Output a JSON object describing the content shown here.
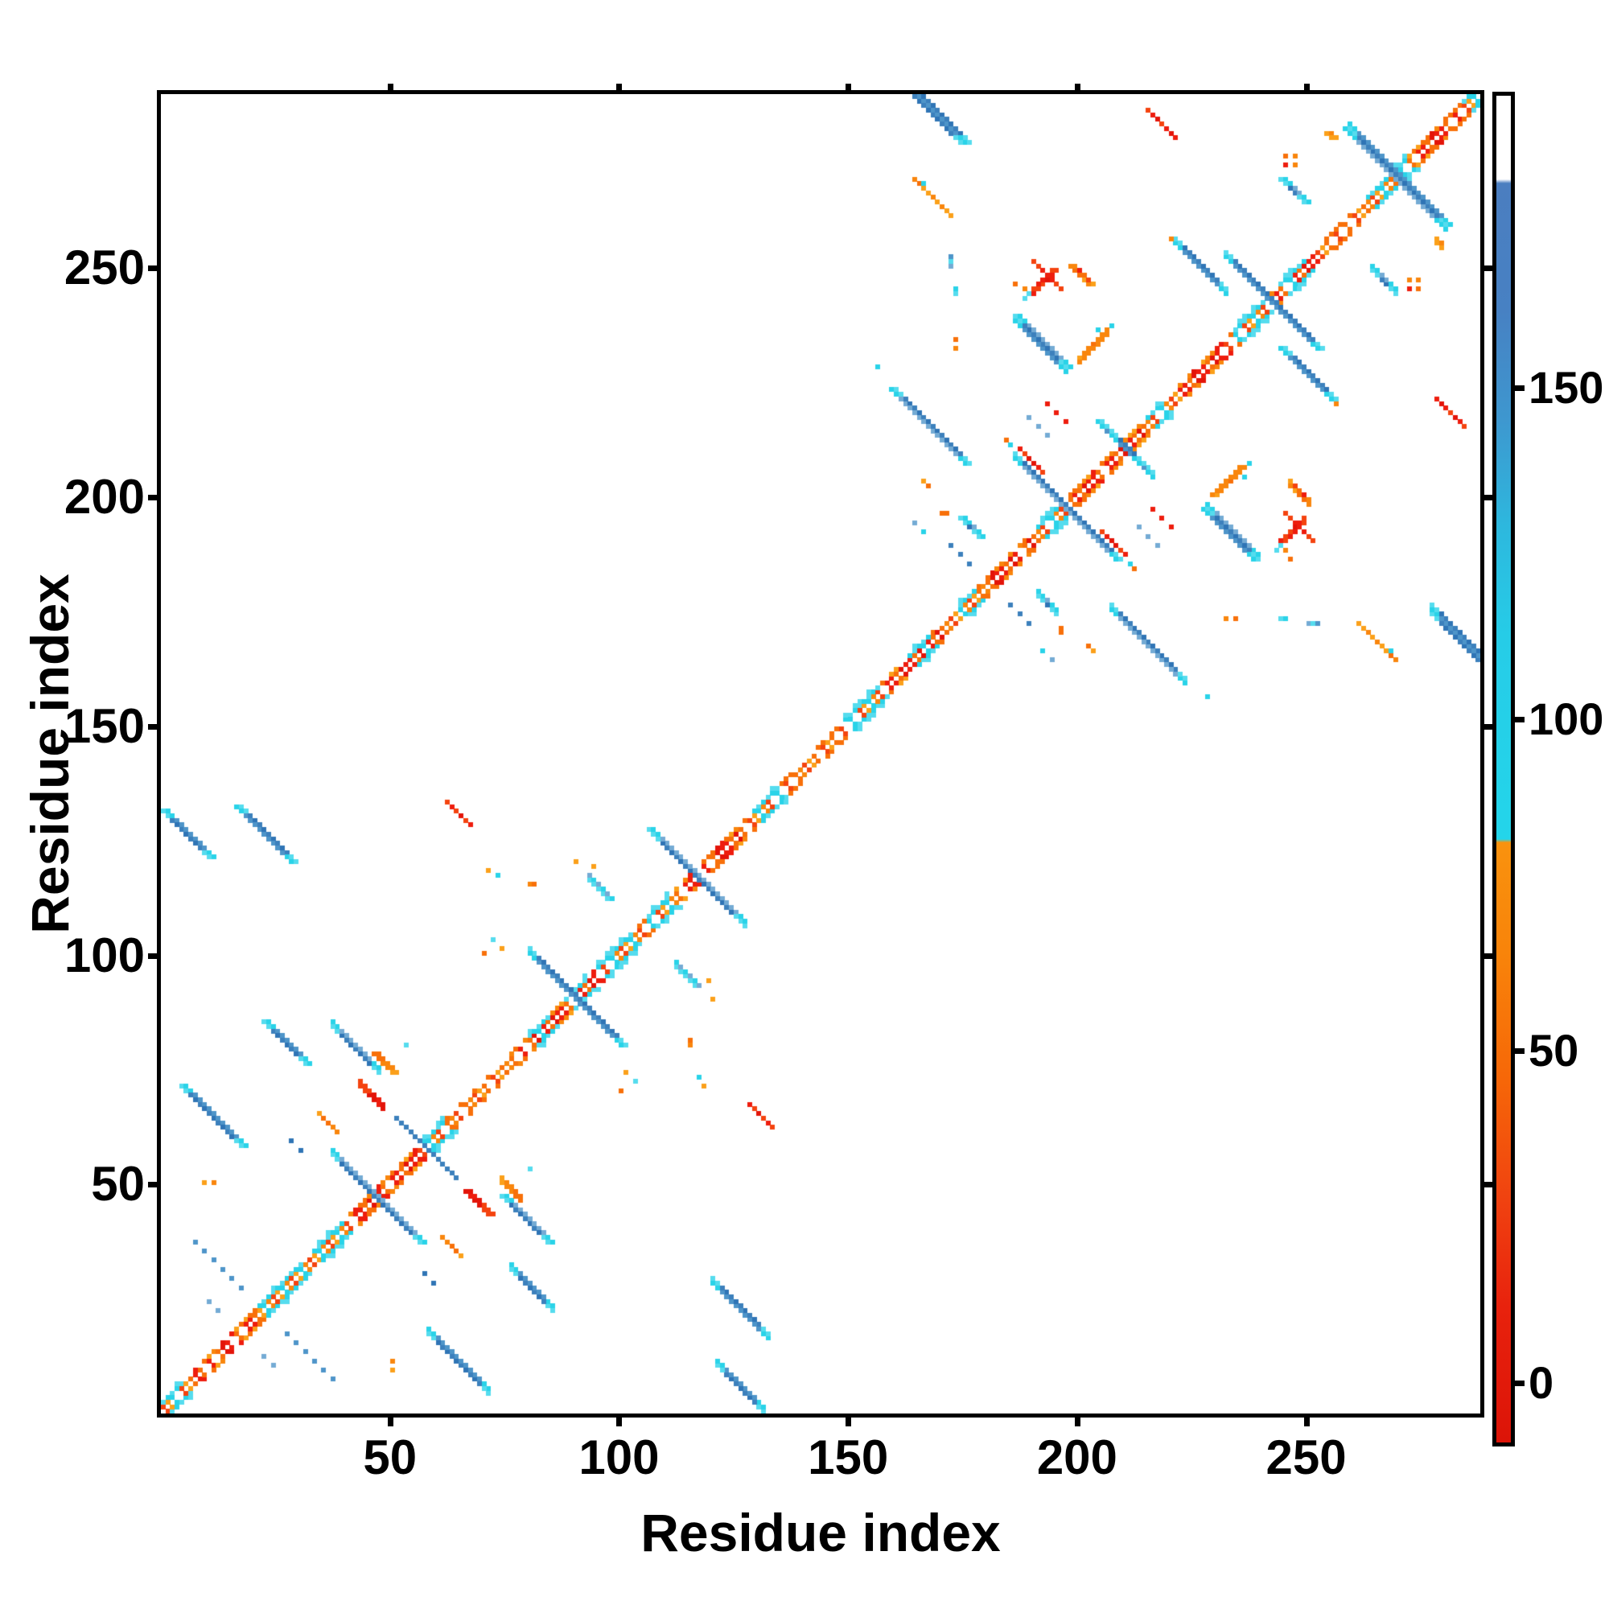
{
  "figure": {
    "xlabel": "Residue index",
    "ylabel": "Residue index"
  },
  "chart_data": {
    "type": "heatmap",
    "subtype": "protein-contact-map",
    "title": "",
    "xlabel": "Residue index",
    "ylabel": "Residue index",
    "xlim": [
      0,
      288
    ],
    "ylim": [
      0,
      288
    ],
    "x_ticks": [
      50,
      100,
      150,
      200,
      250
    ],
    "y_ticks": [
      50,
      100,
      150,
      200,
      250
    ],
    "grid": false,
    "legend": "none",
    "n_residues": 288,
    "geometry": {
      "left": 200,
      "top": 117,
      "size": 1640,
      "n": 288
    },
    "palette": {
      "background": "#ffffff",
      "axis": "#000000",
      "red": [
        "#EE1D0E",
        "#E31409",
        "#F4430F"
      ],
      "orange": [
        "#F9860D",
        "#F8700A",
        "#FBA01A"
      ],
      "cyan": [
        "#29D3E8",
        "#55DCEE"
      ],
      "blue": [
        "#4E95C9",
        "#3C80BC",
        "#74ABD4",
        "#2F74B5"
      ],
      "colorbar_blue": "#4B7EC0",
      "white": "#FFFFFF"
    },
    "colorbar": {
      "vmin": -9,
      "vmax": 194,
      "ticks": [
        0,
        50,
        100,
        150
      ],
      "tick_labels": [
        "0",
        "50",
        "100",
        "150"
      ],
      "stops": [
        [
          0,
          "#FFFFFF"
        ],
        [
          6.2,
          "#FFFFFF"
        ],
        [
          6.5,
          "#4B7EC0"
        ],
        [
          16,
          "#4781C3"
        ],
        [
          24,
          "#3E97CF"
        ],
        [
          32,
          "#2DB8DE"
        ],
        [
          40,
          "#26CCE7"
        ],
        [
          55.2,
          "#24D5EA"
        ],
        [
          55.45,
          "#F9920E"
        ],
        [
          64,
          "#F8830A"
        ],
        [
          73,
          "#F66708"
        ],
        [
          82,
          "#F04210"
        ],
        [
          90,
          "#E8220D"
        ],
        [
          100,
          "#DC1408"
        ]
      ]
    },
    "diagonal": {
      "core": "white",
      "segments": [
        [
          0,
          7,
          "orange"
        ],
        [
          7,
          21,
          "red"
        ],
        [
          21,
          33,
          "orange"
        ],
        [
          33,
          41,
          "orange"
        ],
        [
          41,
          56,
          "red"
        ],
        [
          56,
          64,
          "orange"
        ],
        [
          64,
          76,
          "orange"
        ],
        [
          76,
          95,
          "red"
        ],
        [
          95,
          104,
          "orange"
        ],
        [
          104,
          112,
          "orange"
        ],
        [
          112,
          126,
          "red"
        ],
        [
          126,
          136,
          "orange"
        ],
        [
          136,
          148,
          "orange"
        ],
        [
          148,
          158,
          "orange"
        ],
        [
          158,
          170,
          "red"
        ],
        [
          170,
          180,
          "orange"
        ],
        [
          180,
          190,
          "red"
        ],
        [
          190,
          199,
          "orange"
        ],
        [
          199,
          214,
          "red"
        ],
        [
          214,
          222,
          "orange"
        ],
        [
          222,
          232,
          "red"
        ],
        [
          232,
          242,
          "orange"
        ],
        [
          242,
          252,
          "red"
        ],
        [
          252,
          268,
          "orange"
        ],
        [
          268,
          283,
          "red"
        ],
        [
          283,
          288,
          "orange"
        ]
      ],
      "cyan_flanks": [
        [
          0,
          5
        ],
        [
          21,
          31
        ],
        [
          33,
          40
        ],
        [
          57,
          62
        ],
        [
          80,
          85
        ],
        [
          88,
          93
        ],
        [
          95,
          103
        ],
        [
          106,
          111
        ],
        [
          129,
          135
        ],
        [
          149,
          157
        ],
        [
          163,
          168
        ],
        [
          174,
          178
        ],
        [
          191,
          197
        ],
        [
          215,
          219
        ],
        [
          234,
          241
        ],
        [
          244,
          250
        ],
        [
          263,
          272
        ],
        [
          284,
          288
        ]
      ]
    },
    "features": [
      {
        "x": 4,
        "y": 71,
        "len": 14,
        "w": 2,
        "color": "blue",
        "style": "streak",
        "tips": "cyan"
      },
      {
        "x": 0,
        "y": 131,
        "len": 11,
        "w": 2,
        "color": "blue",
        "style": "streak",
        "tips": "cyan"
      },
      {
        "x": 16,
        "y": 132,
        "len": 13,
        "w": 2,
        "color": "blue",
        "style": "streak",
        "tips": "cyan"
      },
      {
        "x": 22,
        "y": 85,
        "len": 10,
        "w": 2,
        "color": "blue",
        "style": "streak",
        "tips": "cyan"
      },
      {
        "x": 37,
        "y": 56,
        "len": 20,
        "w": 2,
        "color": "blue",
        "style": "streak",
        "tips": "cyan"
      },
      {
        "x": 74,
        "y": 47,
        "len": 11,
        "w": 2,
        "color": "blue",
        "style": "streak",
        "tips": "cyan"
      },
      {
        "x": 80,
        "y": 100,
        "len": 21,
        "w": 2,
        "color": "blue",
        "style": "streak",
        "tips": "cyan"
      },
      {
        "x": 106,
        "y": 127,
        "len": 21,
        "w": 2,
        "color": "blue",
        "style": "streak",
        "tips": "cyan"
      },
      {
        "x": 159,
        "y": 292,
        "len": 16,
        "w": 3,
        "color": "blue",
        "style": "streak",
        "tips": "cyan"
      },
      {
        "x": 186,
        "y": 239,
        "len": 12,
        "w": 2,
        "color": "blue",
        "style": "streak",
        "tips": "cyan"
      },
      {
        "x": 159,
        "y": 223,
        "len": 17,
        "w": 2,
        "color": "blue",
        "style": "streak",
        "tips": "cyan"
      },
      {
        "x": 186,
        "y": 208,
        "len": 23,
        "w": 2,
        "color": "blue",
        "style": "streak",
        "tips": "cyan"
      },
      {
        "x": 204,
        "y": 216,
        "len": 10,
        "w": 2,
        "color": "blue",
        "style": "streak",
        "tips": "cyan"
      },
      {
        "x": 227,
        "y": 197,
        "len": 12,
        "w": 2,
        "color": "blue",
        "style": "streak",
        "tips": "cyan"
      },
      {
        "x": 232,
        "y": 252,
        "len": 21,
        "w": 2,
        "color": "blue",
        "style": "streak",
        "tips": "cyan"
      },
      {
        "x": 244,
        "y": 232,
        "len": 12,
        "w": 2,
        "color": "blue",
        "style": "streak",
        "tips": "cyan"
      },
      {
        "x": 258,
        "y": 280,
        "len": 22,
        "w": 3,
        "color": "blue",
        "style": "streak",
        "tips": "cyan"
      },
      {
        "x": 244,
        "y": 269,
        "len": 6,
        "w": 2,
        "color": "blue",
        "style": "streak",
        "tips": "cyan"
      },
      {
        "x": 174,
        "y": 195,
        "len": 5,
        "w": 2,
        "color": "blue",
        "style": "streak",
        "tips": "cyan"
      },
      {
        "x": 93,
        "y": 116,
        "len": 5,
        "w": 2,
        "color": "cyan",
        "style": "streak",
        "tips": null
      },
      {
        "x": 254,
        "y": 279,
        "len": 2,
        "w": 2,
        "color": "orange",
        "style": "streak",
        "tips": null
      },
      {
        "x": 52,
        "y": 63,
        "len": 13,
        "w": 1,
        "color": "blue",
        "style": "dots"
      },
      {
        "x": 7,
        "y": 37,
        "len": 12,
        "w": 1,
        "color": "blue",
        "style": "dots"
      },
      {
        "x": 113,
        "y": 97,
        "len": 6,
        "w": 1,
        "color": "blue",
        "style": "dots"
      },
      {
        "x": 185,
        "y": 176,
        "len": 5,
        "w": 1,
        "color": "blue",
        "style": "dots"
      },
      {
        "x": 189,
        "y": 217,
        "len": 5,
        "w": 1,
        "color": "blue",
        "style": "dots"
      },
      {
        "x": 216,
        "y": 197,
        "len": 6,
        "w": 1,
        "color": "red",
        "style": "dots"
      },
      {
        "x": 43,
        "y": 71,
        "len": 6,
        "w": 1,
        "color": "red",
        "style": "steps"
      },
      {
        "x": 34,
        "y": 65,
        "len": 5,
        "w": 1,
        "color": "orange",
        "style": "steps"
      },
      {
        "x": 74,
        "y": 50,
        "len": 5,
        "w": 1,
        "color": "orange",
        "style": "steps"
      },
      {
        "x": 128,
        "y": 67,
        "len": 6,
        "w": 1,
        "color": "redorange",
        "style": "steps"
      },
      {
        "x": 164,
        "y": 269,
        "len": 8,
        "w": 1,
        "color": "orange",
        "style": "steps"
      },
      {
        "x": 190,
        "y": 251,
        "len": 7,
        "w": 1,
        "color": "red",
        "style": "steps"
      },
      {
        "x": 187,
        "y": 210,
        "len": 6,
        "w": 1,
        "color": "red",
        "style": "steps"
      },
      {
        "x": 200,
        "y": 230,
        "len": 7,
        "w": 1,
        "color": "redorange",
        "style": "steps",
        "par": 1
      },
      {
        "x": 244,
        "y": 190,
        "len": 6,
        "w": 1,
        "color": "red",
        "style": "steps",
        "par": 1
      },
      {
        "x": 246,
        "y": 202,
        "len": 5,
        "w": 1,
        "color": "redorange",
        "style": "steps"
      },
      {
        "x": 215,
        "y": 284,
        "len": 7,
        "w": 1,
        "color": "redorange",
        "style": "steps"
      },
      {
        "x": 261,
        "y": 172,
        "len": 5,
        "w": 1,
        "color": "orange",
        "style": "steps"
      },
      {
        "x": 202,
        "y": 167,
        "len": 2,
        "w": 1,
        "color": "orange",
        "style": "steps"
      }
    ],
    "dots": [
      [
        9,
        50,
        "orange"
      ],
      [
        50,
        11,
        "orange"
      ],
      [
        80,
        53,
        "cyan"
      ],
      [
        101,
        74,
        "orange"
      ],
      [
        103,
        72,
        "cyan"
      ],
      [
        100,
        70,
        "orange"
      ],
      [
        80,
        115,
        "orange"
      ],
      [
        81,
        115,
        "orange"
      ],
      [
        119,
        94,
        "orange"
      ],
      [
        120,
        90,
        "orange"
      ],
      [
        117,
        73,
        "cyan"
      ],
      [
        118,
        71,
        "orange"
      ],
      [
        166,
        268,
        "cyan"
      ],
      [
        188,
        245,
        "orange"
      ],
      [
        189,
        244,
        "cyan"
      ],
      [
        207,
        237,
        "cyan"
      ],
      [
        172,
        250,
        "blue"
      ],
      [
        172,
        251,
        "cyan"
      ],
      [
        172,
        252,
        "blue"
      ],
      [
        232,
        173,
        "orange"
      ],
      [
        244,
        173,
        "cyan"
      ],
      [
        245,
        173,
        "cyan"
      ],
      [
        192,
        166,
        "cyan"
      ],
      [
        194,
        164,
        "blue"
      ],
      [
        228,
        156,
        "cyan"
      ],
      [
        245,
        274,
        "orange"
      ],
      [
        247,
        272,
        "orange"
      ],
      [
        274,
        247,
        "orange"
      ],
      [
        272,
        245,
        "red"
      ],
      [
        256,
        220,
        "orange"
      ],
      [
        243,
        188,
        "cyan"
      ],
      [
        246,
        186,
        "orange"
      ],
      [
        57,
        30,
        "blue"
      ],
      [
        59,
        28,
        "blue"
      ],
      [
        22,
        12,
        "blue"
      ],
      [
        24,
        10,
        "blue"
      ],
      [
        184,
        212,
        "orange"
      ],
      [
        185,
        211,
        "cyan"
      ],
      [
        234,
        205,
        "orange"
      ],
      [
        236,
        204,
        "cyan"
      ],
      [
        170,
        196,
        "orange"
      ],
      [
        171,
        196,
        "orange"
      ],
      [
        173,
        234,
        "orange"
      ]
    ]
  }
}
